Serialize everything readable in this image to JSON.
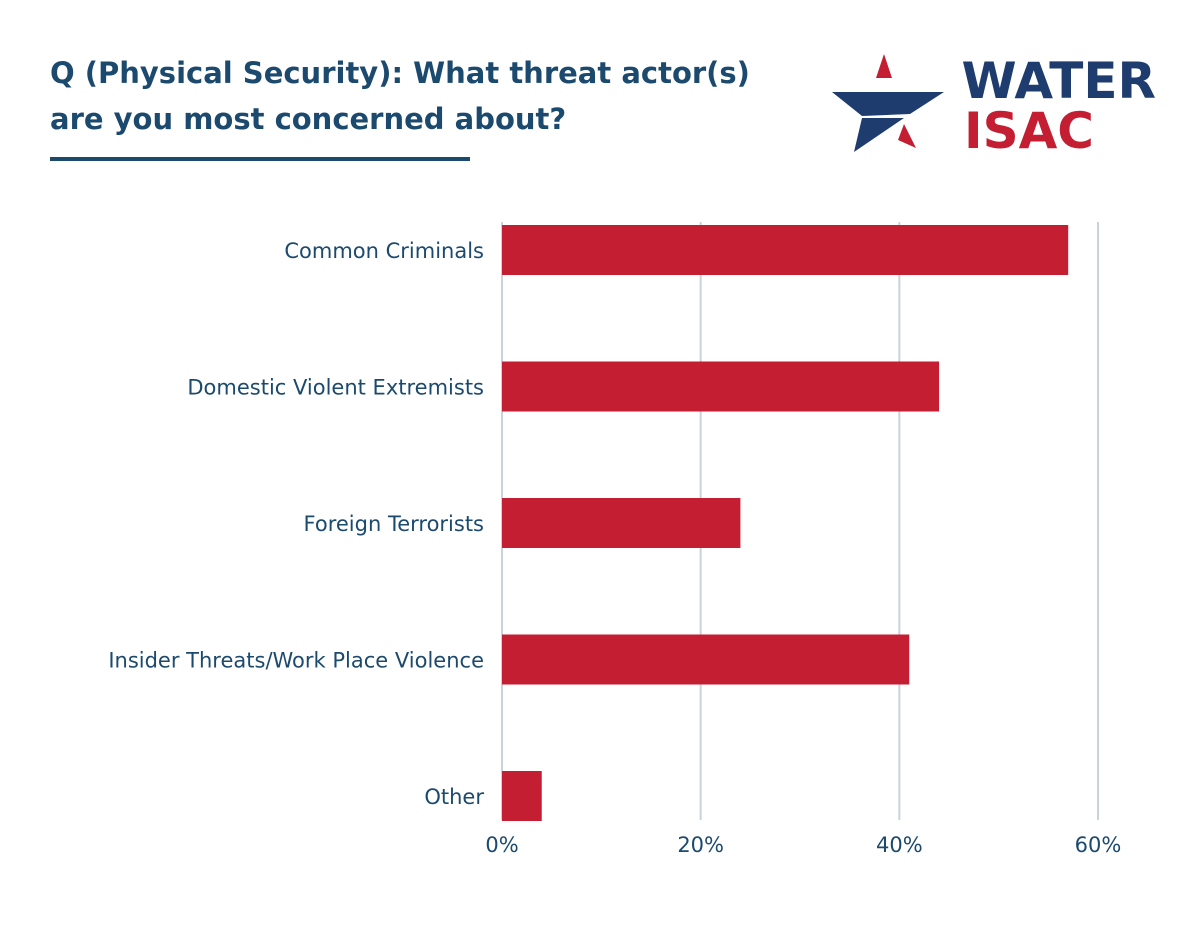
{
  "header": {
    "title_line1": "Q (Physical Security): What threat actor(s)",
    "title_line2": "are you most concerned about?"
  },
  "logo": {
    "word1": "WATER",
    "word2": "ISAC",
    "star_icon": "star-icon"
  },
  "colors": {
    "navy": "#1c4a6e",
    "bar": "#c41e33",
    "grid": "#c8d3dc",
    "logo_navy": "#1f3c6e"
  },
  "chart_data": {
    "type": "bar",
    "orientation": "horizontal",
    "categories": [
      "Common Criminals",
      "Domestic Violent Extremists",
      "Foreign Terrorists",
      "Insider Threats/Work Place Violence",
      "Other"
    ],
    "values": [
      57,
      44,
      24,
      41,
      4
    ],
    "xlim": [
      0,
      60
    ],
    "xticks": [
      "0%",
      "20%",
      "40%",
      "60%"
    ],
    "xtick_values": [
      0,
      20,
      40,
      60
    ],
    "grid": "vertical",
    "xlabel": "",
    "ylabel": ""
  }
}
